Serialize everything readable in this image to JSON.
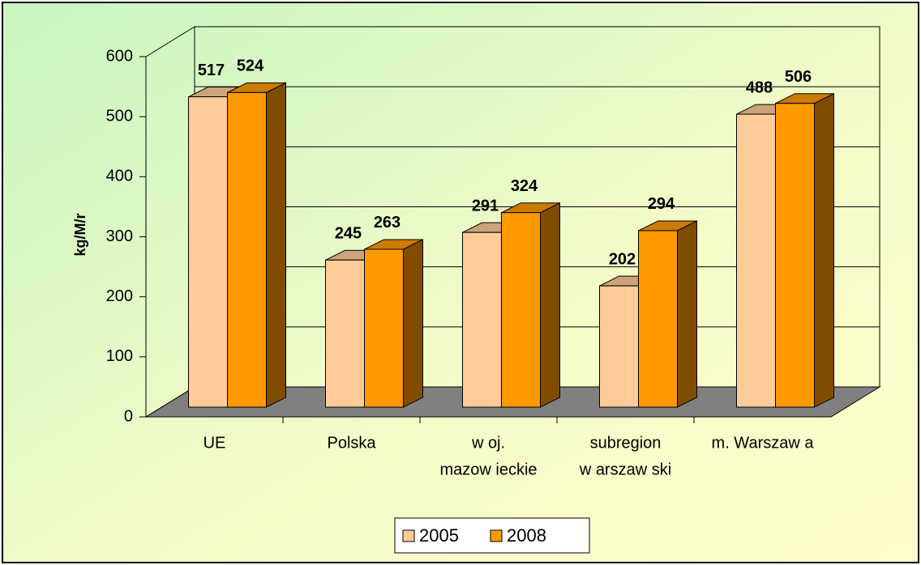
{
  "chart_data": {
    "type": "bar3d",
    "ylabel": "kg/M/r",
    "categories": [
      [
        "UE"
      ],
      [
        "Polska"
      ],
      [
        "w oj.",
        "mazow ieckie"
      ],
      [
        "subregion",
        "w arszaw ski"
      ],
      [
        "m. Warszaw a"
      ]
    ],
    "series": [
      {
        "name": "2005",
        "color": "#FFCC99",
        "values": [
          517,
          245,
          291,
          202,
          488
        ]
      },
      {
        "name": "2008",
        "color": "#FF9900",
        "values": [
          524,
          263,
          324,
          294,
          506
        ]
      }
    ],
    "ylim": [
      0,
      600
    ],
    "yticks": [
      0,
      100,
      200,
      300,
      400,
      500,
      600
    ],
    "grid": true,
    "legend": "bottom"
  }
}
